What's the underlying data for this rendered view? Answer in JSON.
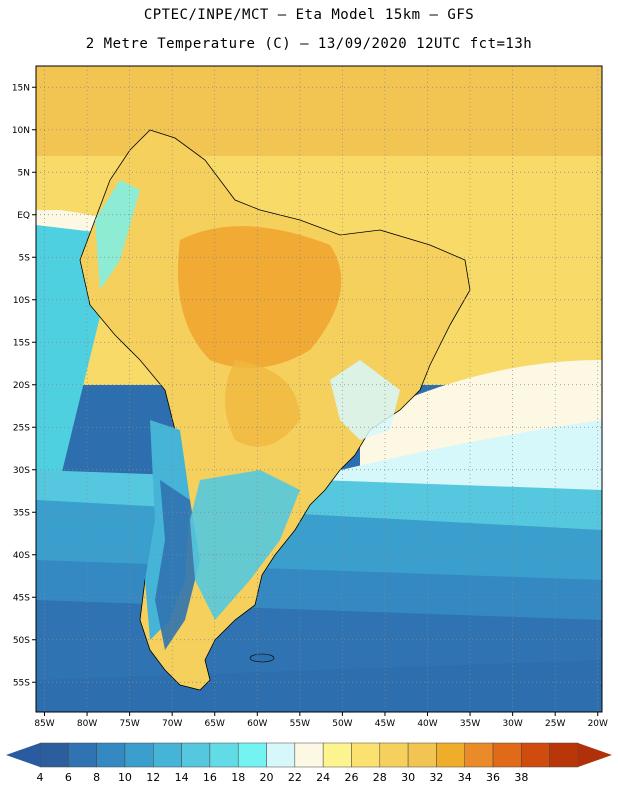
{
  "header": {
    "title_line1": "CPTEC/INPE/MCT –  Eta Model 15km – GFS",
    "title_line2": "2 Metre Temperature (C) – 13/09/2020 12UTC fct=13h"
  },
  "map": {
    "lat_ticks": [
      "15N",
      "10N",
      "5N",
      "EQ",
      "5S",
      "10S",
      "15S",
      "20S",
      "25S",
      "30S",
      "35S",
      "40S",
      "45S",
      "50S",
      "55S"
    ],
    "lon_ticks": [
      "85W",
      "80W",
      "75W",
      "70W",
      "65W",
      "60W",
      "55W",
      "50W",
      "45W",
      "40W",
      "35W",
      "30W",
      "25W",
      "20W"
    ],
    "lat_range": [
      17.5,
      -58.5
    ],
    "lon_range": [
      -86,
      -19.5
    ],
    "colors": {
      "warm_north": "#f2c552",
      "warm_ocean": "#f8da68",
      "hot_inland": "#f0a32c",
      "cool_ocean": "#4fd0e0",
      "cold_ocean": "#2d6fae",
      "coast": "#000000"
    }
  },
  "colorbar": {
    "labels": [
      "4",
      "6",
      "8",
      "10",
      "12",
      "14",
      "16",
      "18",
      "20",
      "22",
      "24",
      "26",
      "28",
      "30",
      "32",
      "34",
      "36",
      "38"
    ],
    "colors": [
      "#2c5e9e",
      "#2f73b2",
      "#3489c2",
      "#3a9fcc",
      "#46b4d6",
      "#55c8df",
      "#63dbe6",
      "#74f3f3",
      "#d6f8fb",
      "#fdf8e3",
      "#fef48f",
      "#fbe270",
      "#f5d05d",
      "#f2c552",
      "#efad2a",
      "#ea8a28",
      "#e06a18",
      "#cf4c0e",
      "#b83608"
    ],
    "left_arrow_color": "#2a5aa0",
    "right_arrow_color": "#b0300a"
  }
}
